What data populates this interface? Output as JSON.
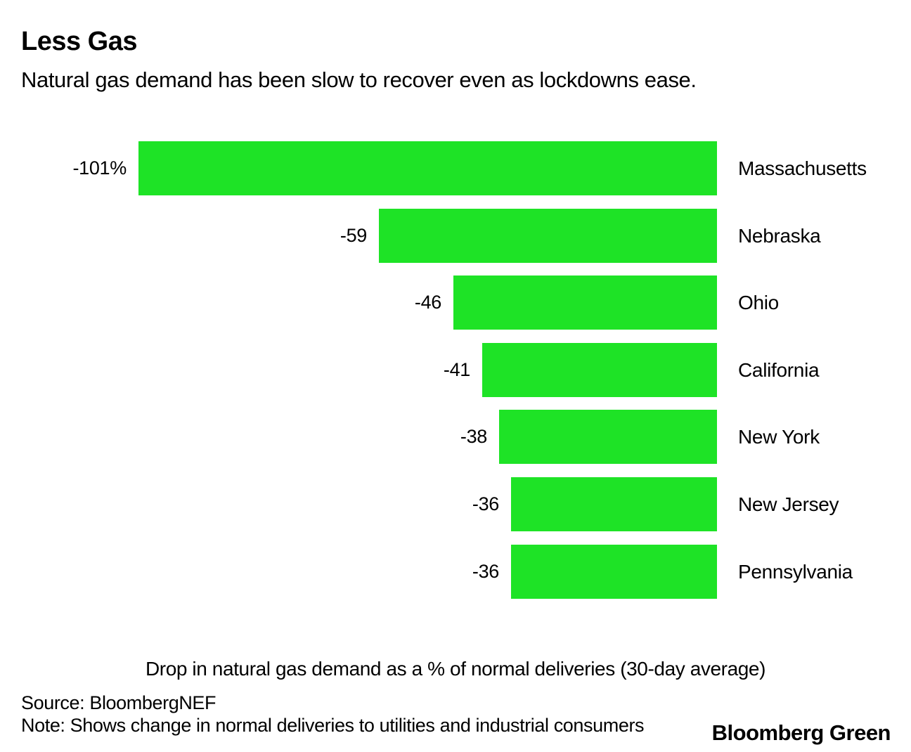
{
  "header": {
    "title": "Less Gas",
    "subtitle": "Natural gas demand has been slow to recover even as lockdowns ease."
  },
  "chart_data": {
    "type": "bar",
    "orientation": "horizontal",
    "bars_aligned": "right",
    "categories": [
      "Massachusetts",
      "Nebraska",
      "Ohio",
      "California",
      "New York",
      "New Jersey",
      "Pennsylvania"
    ],
    "values": [
      -101,
      -59,
      -46,
      -41,
      -38,
      -36,
      -36
    ],
    "value_labels": [
      "-101%",
      "-59",
      "-46",
      "-41",
      "-38",
      "-36",
      "-36"
    ],
    "xlabel": "Drop in natural gas demand as a % of normal deliveries (30-day average)",
    "xlim": [
      -101,
      0
    ],
    "grid": false,
    "legend": false,
    "bar_color": "#1EE326",
    "text_color": "#000000",
    "background_color": "#FFFFFF"
  },
  "footer": {
    "source": "Source: BloombergNEF",
    "note": "Note: Shows change in normal deliveries to utilities and industrial consumers",
    "logo": "Bloomberg Green"
  }
}
